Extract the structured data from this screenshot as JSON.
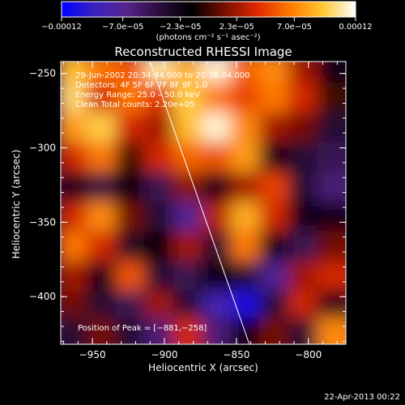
{
  "chart_data": {
    "type": "heatmap",
    "title": "Reconstructed RHESSI Image",
    "xlabel": "Heliocentric X (arcsec)",
    "ylabel": "Heliocentric Y (arcsec)",
    "xlim": [
      -972,
      -774
    ],
    "ylim": [
      -432,
      -242
    ],
    "x_ticks": [
      {
        "value": -950,
        "label": "−950"
      },
      {
        "value": -900,
        "label": "−900"
      },
      {
        "value": -850,
        "label": "−850"
      },
      {
        "value": -800,
        "label": "−800"
      }
    ],
    "y_ticks": [
      {
        "value": -250,
        "label": "−250"
      },
      {
        "value": -300,
        "label": "−300"
      },
      {
        "value": -350,
        "label": "−350"
      },
      {
        "value": -400,
        "label": "−400"
      }
    ],
    "colorbar": {
      "min": -0.00012,
      "max": 0.00012,
      "ticks": [
        {
          "value": -0.00012,
          "label": "−0.00012"
        },
        {
          "value": -7e-05,
          "label": "−7.0e−05"
        },
        {
          "value": -2.3e-05,
          "label": "−2.3e−05"
        },
        {
          "value": 2.3e-05,
          "label": "2.3e−05"
        },
        {
          "value": 7e-05,
          "label": "7.0e−05"
        },
        {
          "value": 0.00012,
          "label": "0.00012"
        }
      ],
      "unit_label": "(photons cm⁻² s⁻¹ asec⁻²)",
      "colors": [
        "#0000ff",
        "#3a22c0",
        "#56248a",
        "#2a0c3a",
        "#000000",
        "#7a0e00",
        "#e02a00",
        "#ff7a00",
        "#ffc832",
        "#ffffff"
      ]
    },
    "annotations": [
      "29-Jun-2002 20:34:44.000 to 20:38:04.000",
      "Detectors: 4F 5F 6F 7F 8F 9F 1.0",
      "Energy Range: 25.0 – 50.0 keV",
      "Clean    Total counts: 2.20e+05"
    ],
    "peak_label": "Position of Peak = [−881,−258]",
    "peak": [
      -881,
      -258
    ],
    "limb_line": [
      [
        -910,
        -242
      ],
      [
        -841,
        -432
      ]
    ],
    "intensity": {
      "x": [
        -960,
        -940,
        -920,
        -900,
        -880,
        -860,
        -840,
        -820,
        -800,
        -780
      ],
      "y": [
        -250,
        -270,
        -290,
        -310,
        -330,
        -350,
        -370,
        -390,
        -410,
        -428
      ],
      "grid": [
        [
          0.75,
          0.55,
          0.45,
          0.9,
          0.7,
          0.95,
          0.5,
          0.6,
          0.2,
          -0.2
        ],
        [
          0.85,
          0.3,
          0.55,
          0.35,
          0.8,
          0.55,
          0.4,
          0.55,
          0.3,
          0.0
        ],
        [
          0.65,
          0.8,
          0.3,
          0.2,
          0.75,
          0.95,
          0.6,
          0.2,
          0.1,
          -0.3
        ],
        [
          0.3,
          0.55,
          0.0,
          0.3,
          0.5,
          0.45,
          0.65,
          -0.2,
          -0.3,
          -0.4
        ],
        [
          -0.2,
          -0.35,
          -0.1,
          -0.4,
          0.15,
          -0.2,
          0.2,
          0.4,
          -0.3,
          -0.5
        ],
        [
          0.3,
          0.6,
          0.1,
          -0.3,
          -0.6,
          0.25,
          0.7,
          0.3,
          -0.2,
          -0.2
        ],
        [
          0.55,
          0.3,
          -0.25,
          -0.1,
          0.2,
          -0.3,
          0.55,
          -0.2,
          -0.4,
          0.1
        ],
        [
          0.2,
          -0.2,
          0.45,
          -0.3,
          -0.4,
          -0.1,
          -0.3,
          -0.6,
          0.2,
          0.3
        ],
        [
          0.1,
          -0.3,
          -0.4,
          0.2,
          -0.3,
          -0.7,
          -0.9,
          -0.3,
          0.3,
          -0.2
        ],
        [
          -0.3,
          0.1,
          -0.3,
          -0.5,
          0.3,
          -0.5,
          -0.2,
          0.1,
          -0.3,
          0.6
        ]
      ]
    }
  },
  "footer": {
    "timestamp": "22-Apr-2013 00:22"
  }
}
